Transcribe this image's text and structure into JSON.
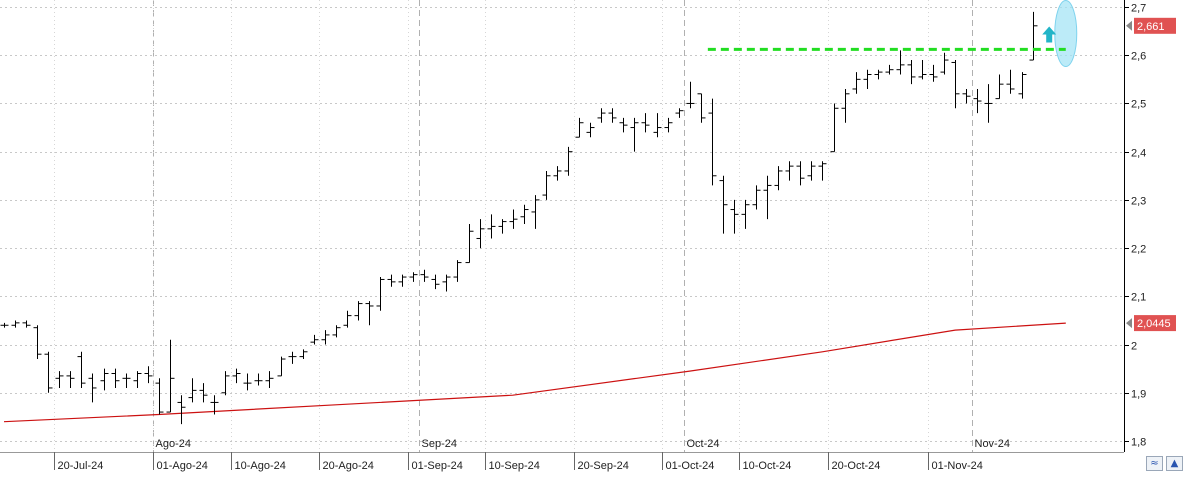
{
  "chart_data": {
    "type": "ohlc",
    "y_axis": {
      "side": "right",
      "range": [
        1.78,
        2.71
      ],
      "ticks": [
        "2,7",
        "2,6",
        "2,5",
        "2,4",
        "2,3",
        "2,2",
        "2,1",
        "2",
        "1,9",
        "1,8"
      ],
      "tick_values": [
        2.7,
        2.6,
        2.5,
        2.4,
        2.3,
        2.2,
        2.1,
        2.0,
        1.9,
        1.8
      ]
    },
    "x_axis": {
      "date_labels": [
        {
          "label": "20-Jul-24",
          "bar": 5
        },
        {
          "label": "01-Ago-24",
          "bar": 14
        },
        {
          "label": "10-Ago-24",
          "bar": 21
        },
        {
          "label": "20-Ago-24",
          "bar": 29
        },
        {
          "label": "01-Sep-24",
          "bar": 37
        },
        {
          "label": "10-Sep-24",
          "bar": 44
        },
        {
          "label": "20-Sep-24",
          "bar": 52
        },
        {
          "label": "01-Oct-24",
          "bar": 60
        },
        {
          "label": "10-Oct-24",
          "bar": 67
        },
        {
          "label": "20-Oct-24",
          "bar": 75
        },
        {
          "label": "01-Nov-24",
          "bar": 84
        }
      ],
      "month_labels": [
        {
          "label": "Ago-24",
          "bar": 14
        },
        {
          "label": "Sep-24",
          "bar": 38
        },
        {
          "label": "Oct-24",
          "bar": 62
        },
        {
          "label": "Nov-24",
          "bar": 88
        }
      ]
    },
    "ohlc": [
      [
        2.04,
        2.045,
        2.035,
        2.04
      ],
      [
        2.04,
        2.05,
        2.035,
        2.045
      ],
      [
        2.045,
        2.05,
        2.035,
        2.04
      ],
      [
        2.035,
        2.04,
        1.97,
        1.98
      ],
      [
        1.98,
        1.985,
        1.9,
        1.91
      ],
      [
        1.93,
        1.945,
        1.91,
        1.935
      ],
      [
        1.935,
        1.945,
        1.91,
        1.93
      ],
      [
        1.975,
        1.985,
        1.91,
        1.92
      ],
      [
        1.93,
        1.94,
        1.88,
        1.91
      ],
      [
        1.925,
        1.95,
        1.905,
        1.94
      ],
      [
        1.94,
        1.95,
        1.91,
        1.925
      ],
      [
        1.93,
        1.94,
        1.91,
        1.93
      ],
      [
        1.925,
        1.945,
        1.91,
        1.94
      ],
      [
        1.94,
        1.955,
        1.92,
        1.935
      ],
      [
        1.92,
        1.93,
        1.855,
        1.86
      ],
      [
        1.86,
        2.01,
        1.86,
        1.93
      ],
      [
        1.88,
        1.895,
        1.835,
        1.87
      ],
      [
        1.89,
        1.93,
        1.88,
        1.905
      ],
      [
        1.905,
        1.92,
        1.88,
        1.895
      ],
      [
        1.88,
        1.895,
        1.855,
        1.88
      ],
      [
        1.9,
        1.945,
        1.895,
        1.935
      ],
      [
        1.935,
        1.95,
        1.92,
        1.94
      ],
      [
        1.92,
        1.94,
        1.905,
        1.92
      ],
      [
        1.925,
        1.94,
        1.915,
        1.925
      ],
      [
        1.925,
        1.945,
        1.91,
        1.93
      ],
      [
        1.935,
        1.975,
        1.935,
        1.97
      ],
      [
        1.975,
        1.985,
        1.96,
        1.975
      ],
      [
        1.975,
        1.99,
        1.97,
        1.985
      ],
      [
        2.005,
        2.02,
        2.0,
        2.01
      ],
      [
        2.01,
        2.03,
        2.0,
        2.02
      ],
      [
        2.02,
        2.04,
        2.015,
        2.035
      ],
      [
        2.04,
        2.07,
        2.035,
        2.06
      ],
      [
        2.06,
        2.09,
        2.05,
        2.085
      ],
      [
        2.085,
        2.09,
        2.04,
        2.08
      ],
      [
        2.08,
        2.14,
        2.07,
        2.135
      ],
      [
        2.135,
        2.145,
        2.12,
        2.13
      ],
      [
        2.13,
        2.145,
        2.12,
        2.14
      ],
      [
        2.14,
        2.15,
        2.13,
        2.145
      ],
      [
        2.145,
        2.155,
        2.13,
        2.14
      ],
      [
        2.135,
        2.145,
        2.115,
        2.125
      ],
      [
        2.13,
        2.145,
        2.11,
        2.14
      ],
      [
        2.14,
        2.175,
        2.13,
        2.17
      ],
      [
        2.17,
        2.25,
        2.17,
        2.235
      ],
      [
        2.22,
        2.26,
        2.2,
        2.24
      ],
      [
        2.24,
        2.27,
        2.22,
        2.245
      ],
      [
        2.245,
        2.26,
        2.23,
        2.255
      ],
      [
        2.255,
        2.28,
        2.24,
        2.26
      ],
      [
        2.265,
        2.29,
        2.25,
        2.28
      ],
      [
        2.275,
        2.31,
        2.24,
        2.3
      ],
      [
        2.31,
        2.36,
        2.3,
        2.35
      ],
      [
        2.35,
        2.37,
        2.34,
        2.36
      ],
      [
        2.36,
        2.41,
        2.35,
        2.4
      ],
      [
        2.43,
        2.47,
        2.43,
        2.46
      ],
      [
        2.44,
        2.46,
        2.43,
        2.45
      ],
      [
        2.47,
        2.49,
        2.46,
        2.48
      ],
      [
        2.48,
        2.49,
        2.46,
        2.47
      ],
      [
        2.46,
        2.47,
        2.44,
        2.455
      ],
      [
        2.45,
        2.47,
        2.4,
        2.46
      ],
      [
        2.46,
        2.48,
        2.44,
        2.455
      ],
      [
        2.44,
        2.48,
        2.43,
        2.45
      ],
      [
        2.45,
        2.47,
        2.44,
        2.46
      ],
      [
        2.48,
        2.49,
        2.47,
        2.485
      ],
      [
        2.5,
        2.545,
        2.49,
        2.5
      ],
      [
        2.52,
        2.52,
        2.46,
        2.47
      ],
      [
        2.48,
        2.51,
        2.33,
        2.35
      ],
      [
        2.34,
        2.35,
        2.23,
        2.29
      ],
      [
        2.28,
        2.3,
        2.23,
        2.27
      ],
      [
        2.27,
        2.3,
        2.24,
        2.29
      ],
      [
        2.29,
        2.33,
        2.28,
        2.32
      ],
      [
        2.32,
        2.35,
        2.26,
        2.33
      ],
      [
        2.33,
        2.37,
        2.32,
        2.36
      ],
      [
        2.36,
        2.38,
        2.34,
        2.37
      ],
      [
        2.37,
        2.38,
        2.33,
        2.345
      ],
      [
        2.35,
        2.38,
        2.34,
        2.37
      ],
      [
        2.37,
        2.38,
        2.34,
        2.375
      ],
      [
        2.4,
        2.5,
        2.4,
        2.49
      ],
      [
        2.49,
        2.53,
        2.46,
        2.52
      ],
      [
        2.53,
        2.565,
        2.52,
        2.55
      ],
      [
        2.55,
        2.57,
        2.53,
        2.56
      ],
      [
        2.56,
        2.57,
        2.55,
        2.565
      ],
      [
        2.565,
        2.58,
        2.56,
        2.57
      ],
      [
        2.57,
        2.61,
        2.56,
        2.58
      ],
      [
        2.58,
        2.59,
        2.54,
        2.555
      ],
      [
        2.555,
        2.59,
        2.55,
        2.56
      ],
      [
        2.56,
        2.58,
        2.545,
        2.555
      ],
      [
        2.565,
        2.605,
        2.56,
        2.59
      ],
      [
        2.585,
        2.59,
        2.49,
        2.52
      ],
      [
        2.52,
        2.53,
        2.5,
        2.515
      ],
      [
        2.51,
        2.53,
        2.48,
        2.505
      ],
      [
        2.5,
        2.54,
        2.46,
        2.5
      ],
      [
        2.51,
        2.56,
        2.51,
        2.54
      ],
      [
        2.54,
        2.57,
        2.52,
        2.53
      ],
      [
        2.52,
        2.565,
        2.51,
        2.56
      ],
      [
        2.59,
        2.69,
        2.59,
        2.661
      ]
    ],
    "moving_average": {
      "color": "#cc1111",
      "points": [
        [
          0,
          1.84
        ],
        [
          14,
          1.855
        ],
        [
          30,
          1.875
        ],
        [
          46,
          1.895
        ],
        [
          62,
          1.945
        ],
        [
          74,
          1.985
        ],
        [
          86,
          2.03
        ],
        [
          96,
          2.0445
        ]
      ]
    },
    "last_price": "2,661",
    "ma_value": "2,0445",
    "resistance": {
      "value": 2.612,
      "from_bar": 64,
      "to_bar": 96,
      "color": "#22dd22"
    },
    "annotations": [
      {
        "type": "up-arrow",
        "bar": 94.5,
        "value": 2.643,
        "color": "#22b5c8"
      },
      {
        "type": "ellipse-highlight",
        "bar": 96,
        "value": 2.645,
        "color": "#9fe2f5"
      }
    ],
    "grid": true,
    "colors": {
      "bars": "#000000",
      "badge": "#e05252",
      "grid": "#c8c8c8"
    }
  },
  "ui": {
    "corner_buttons": [
      {
        "name": "scroll-button",
        "glyph": "≈"
      },
      {
        "name": "zoom-button",
        "glyph": "▲"
      }
    ]
  }
}
